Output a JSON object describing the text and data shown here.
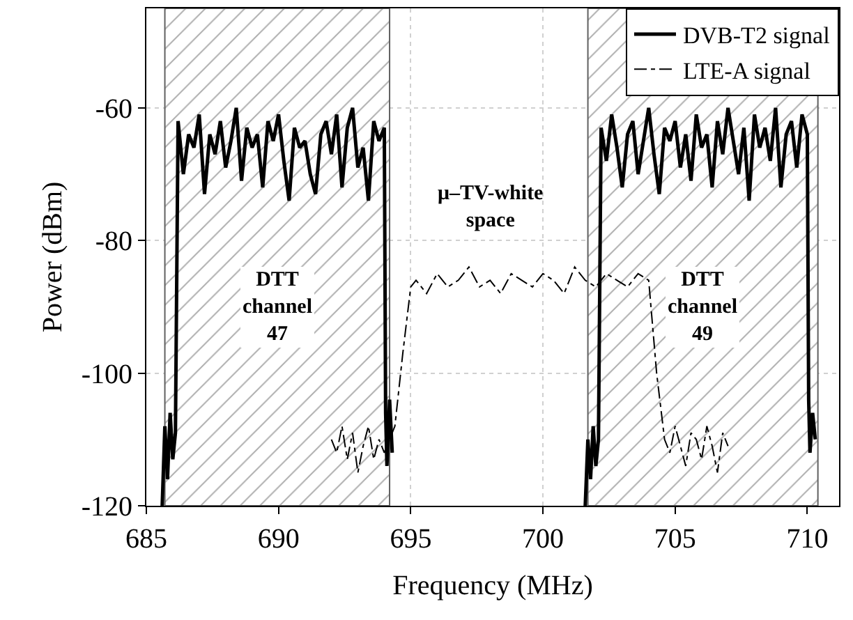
{
  "chart_data": {
    "type": "line",
    "xlabel": "Frequency (MHz)",
    "ylabel": "Power (dBm)",
    "xlim": [
      685,
      711.2
    ],
    "ylim": [
      -120,
      -45
    ],
    "xticks": [
      685,
      690,
      695,
      700,
      705,
      710
    ],
    "yticks": [
      -120,
      -100,
      -80,
      -60
    ],
    "grid": true,
    "legend": "top right",
    "marker": "none",
    "bands": [
      {
        "axis": "x",
        "from": 685.7,
        "to": 694.2,
        "label": "DTT\nchannel\n47",
        "color": "#606060"
      },
      {
        "axis": "x",
        "from": 701.7,
        "to": 710.4,
        "label": "DTT\nchannel\n49",
        "color": "#606060"
      }
    ],
    "annotations": [
      "μ–TV-white\nspace"
    ],
    "series": [
      {
        "name": "DVB-T2 signal",
        "color": "#000000",
        "line_style": "solid",
        "x": [
          685.6,
          685.7,
          685.8,
          685.9,
          686.0,
          686.1,
          686.2,
          686.4,
          686.6,
          686.8,
          687.0,
          687.2,
          687.4,
          687.6,
          687.8,
          688.0,
          688.2,
          688.4,
          688.6,
          688.8,
          689.0,
          689.2,
          689.4,
          689.6,
          689.8,
          690.0,
          690.2,
          690.4,
          690.6,
          690.8,
          691.0,
          691.2,
          691.4,
          691.6,
          691.8,
          692.0,
          692.2,
          692.4,
          692.6,
          692.8,
          693.0,
          693.2,
          693.4,
          693.6,
          693.8,
          694.0,
          694.05,
          694.1,
          694.2,
          694.3,
          698.0,
          701.6,
          701.7,
          701.8,
          701.9,
          702.0,
          702.1,
          702.2,
          702.4,
          702.6,
          702.8,
          703.0,
          703.2,
          703.4,
          703.6,
          703.8,
          704.0,
          704.2,
          704.4,
          704.6,
          704.8,
          705.0,
          705.2,
          705.4,
          705.6,
          705.8,
          706.0,
          706.2,
          706.4,
          706.6,
          706.8,
          707.0,
          707.2,
          707.4,
          707.6,
          707.8,
          708.0,
          708.2,
          708.4,
          708.6,
          708.8,
          709.0,
          709.2,
          709.4,
          709.6,
          709.8,
          710.0,
          710.05,
          710.1,
          710.2,
          710.3
        ],
        "values": [
          -120,
          -108,
          -116,
          -106,
          -113,
          -109,
          -62,
          -70,
          -64,
          -66,
          -61,
          -73,
          -64,
          -67,
          -62,
          -69,
          -65,
          -60,
          -71,
          -63,
          -66,
          -64,
          -72,
          -62,
          -65,
          -61,
          -68,
          -74,
          -63,
          -66,
          -65,
          -70,
          -73,
          -64,
          -62,
          -67,
          -61,
          -72,
          -63,
          -60,
          -69,
          -66,
          -74,
          -62,
          -65,
          -63,
          -106,
          -114,
          -104,
          -112,
          null,
          -120,
          -110,
          -116,
          -108,
          -114,
          -110,
          -63,
          -68,
          -61,
          -66,
          -72,
          -64,
          -62,
          -70,
          -65,
          -60,
          -67,
          -73,
          -63,
          -65,
          -62,
          -69,
          -64,
          -71,
          -61,
          -66,
          -64,
          -72,
          -62,
          -67,
          -60,
          -65,
          -70,
          -63,
          -74,
          -61,
          -66,
          -63,
          -68,
          -60,
          -72,
          -64,
          -62,
          -69,
          -61,
          -64,
          -104,
          -112,
          -106,
          -110
        ]
      },
      {
        "name": "LTE-A signal",
        "color": "#000000",
        "line_style": "dashdot",
        "x": [
          692.0,
          692.2,
          692.4,
          692.6,
          692.8,
          693.0,
          693.2,
          693.4,
          693.6,
          693.8,
          694.0,
          694.4,
          694.7,
          695.0,
          695.2,
          695.6,
          696.0,
          696.4,
          696.8,
          697.2,
          697.6,
          698.0,
          698.4,
          698.8,
          699.2,
          699.6,
          700.0,
          700.4,
          700.8,
          701.2,
          701.6,
          702.0,
          702.4,
          702.8,
          703.2,
          703.6,
          704.0,
          704.3,
          704.6,
          704.8,
          705.0,
          705.2,
          705.4,
          705.6,
          705.8,
          706.0,
          706.2,
          706.4,
          706.6,
          706.8,
          707.0
        ],
        "values": [
          -110,
          -112,
          -108,
          -113,
          -109,
          -115,
          -111,
          -108,
          -113,
          -110,
          -112,
          -108,
          -97,
          -87,
          -86,
          -88,
          -85,
          -87,
          -86,
          -84,
          -87,
          -86,
          -88,
          -85,
          -86,
          -87,
          -85,
          -86,
          -88,
          -84,
          -86,
          -87,
          -85,
          -86,
          -87,
          -85,
          -86,
          -100,
          -110,
          -112,
          -108,
          -111,
          -114,
          -109,
          -110,
          -113,
          -108,
          -111,
          -115,
          -109,
          -111
        ]
      }
    ]
  }
}
